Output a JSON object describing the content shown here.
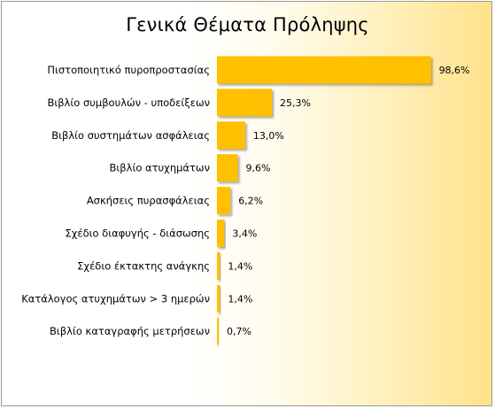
{
  "chart_data": {
    "type": "bar",
    "orientation": "horizontal",
    "title": "Γενικά Θέματα Πρόληψης",
    "categories": [
      "Πιστοποιητικό πυροπροστασίας",
      "Βιβλίο συμβουλών - υποδείξεων",
      "Βιβλίο συστημάτων ασφάλειας",
      "Βιβλίο ατυχημάτων",
      "Ασκήσεις πυρασφάλειας",
      "Σχέδιο διαφυγής - διάσωσης",
      "Σχέδιο έκτακτης ανάγκης",
      "Κατάλογος ατυχημάτων > 3 ημερών",
      "Βιβλίο καταγραφής μετρήσεων"
    ],
    "values": [
      98.6,
      25.3,
      13.0,
      9.6,
      6.2,
      3.4,
      1.4,
      1.4,
      0.7
    ],
    "value_labels": [
      "98,6%",
      "25,3%",
      "13,0%",
      "9,6%",
      "6,2%",
      "3,4%",
      "1,4%",
      "1,4%",
      "0,7%"
    ],
    "xlim": [
      0,
      100
    ],
    "bar_color": "#ffc000",
    "grid": false,
    "legend": "none"
  }
}
